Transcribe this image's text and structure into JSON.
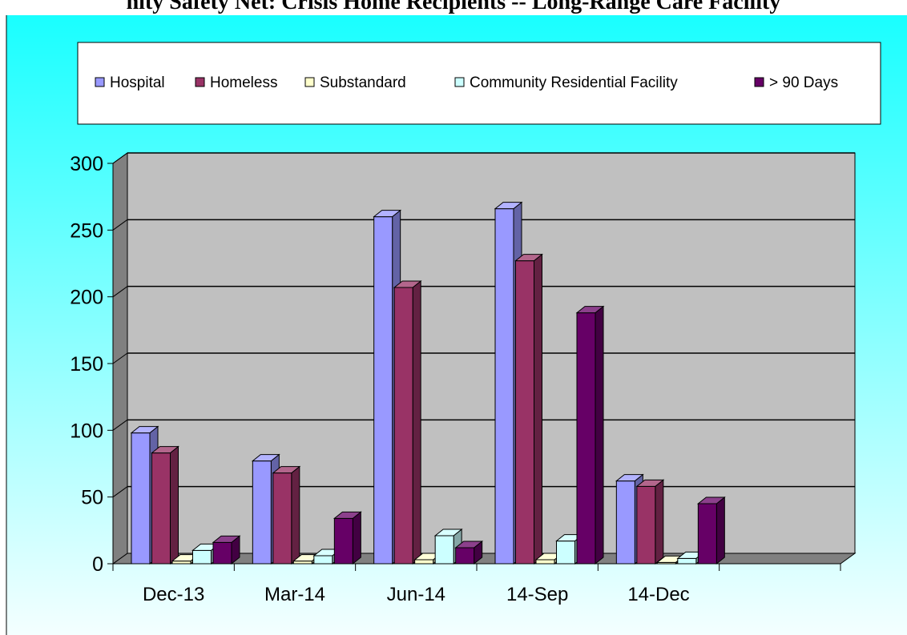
{
  "title": "nity Safety Net: Crisis Home Recipients -- Long-Range Care Facility",
  "chart_data": {
    "type": "bar",
    "categories": [
      "Dec-13",
      "Mar-14",
      "Jun-14",
      "14-Sep",
      "14-Dec",
      ""
    ],
    "series": [
      {
        "name": "Hospital",
        "values": [
          98,
          77,
          260,
          266,
          62,
          null
        ]
      },
      {
        "name": "Homeless",
        "values": [
          83,
          68,
          207,
          227,
          58,
          null
        ]
      },
      {
        "name": "Substandard",
        "values": [
          2,
          2,
          3,
          3,
          1,
          null
        ]
      },
      {
        "name": "Community Residential Facility",
        "values": [
          10,
          6,
          21,
          17,
          4,
          null
        ]
      },
      {
        "name": "> 90 Days",
        "values": [
          16,
          34,
          12,
          188,
          45,
          null
        ]
      }
    ],
    "yticks": [
      "0",
      "50",
      "100",
      "150",
      "200",
      "250",
      "300"
    ],
    "ylim": [
      0,
      300
    ],
    "xlabel": "",
    "ylabel": "",
    "grid": true,
    "legend_position": "top",
    "colors": {
      "series": [
        "#9999ff",
        "#993366",
        "#ffffcc",
        "#ccffff",
        "#660066"
      ],
      "plot_background": "#c0c0c0",
      "panel_top": "#19ffff",
      "panel_bottom": "#f4ffff"
    }
  }
}
